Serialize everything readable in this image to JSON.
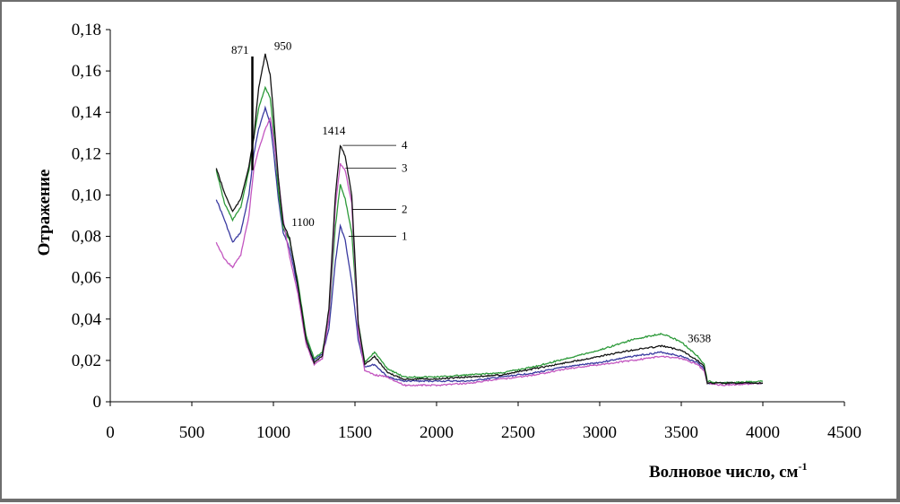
{
  "chart_data": {
    "type": "line",
    "title": "",
    "xlabel": "Волновое число, см",
    "xlabel_superscript": "-1",
    "ylabel": "Отражение",
    "xlim": [
      0,
      4500
    ],
    "ylim": [
      0,
      0.18
    ],
    "x_ticks": [
      0,
      500,
      1000,
      1500,
      2000,
      2500,
      3000,
      3500,
      4000,
      4500
    ],
    "x_tick_labels": [
      "0",
      "500",
      "1000",
      "1500",
      "2000",
      "2500",
      "3000",
      "3500",
      "4000",
      "4500"
    ],
    "y_ticks": [
      0,
      0.02,
      0.04,
      0.06,
      0.08,
      0.1,
      0.12,
      0.14,
      0.16,
      0.18
    ],
    "y_tick_labels": [
      "0",
      "0,02",
      "0,04",
      "0,06",
      "0,08",
      "0,10",
      "0,12",
      "0,14",
      "0,16",
      "0,18"
    ],
    "grid": false,
    "series": [
      {
        "name": "1",
        "color": "#3a3aa0",
        "points": [
          [
            650,
            0.098
          ],
          [
            700,
            0.088
          ],
          [
            750,
            0.077
          ],
          [
            800,
            0.082
          ],
          [
            850,
            0.1
          ],
          [
            880,
            0.12
          ],
          [
            910,
            0.132
          ],
          [
            950,
            0.142
          ],
          [
            980,
            0.135
          ],
          [
            1000,
            0.122
          ],
          [
            1030,
            0.098
          ],
          [
            1060,
            0.082
          ],
          [
            1100,
            0.074
          ],
          [
            1150,
            0.055
          ],
          [
            1200,
            0.03
          ],
          [
            1250,
            0.02
          ],
          [
            1300,
            0.023
          ],
          [
            1340,
            0.035
          ],
          [
            1380,
            0.068
          ],
          [
            1410,
            0.085
          ],
          [
            1440,
            0.078
          ],
          [
            1480,
            0.058
          ],
          [
            1520,
            0.03
          ],
          [
            1560,
            0.017
          ],
          [
            1620,
            0.018
          ],
          [
            1700,
            0.012
          ],
          [
            1800,
            0.01
          ],
          [
            1900,
            0.01
          ],
          [
            2000,
            0.01
          ],
          [
            2200,
            0.01
          ],
          [
            2400,
            0.012
          ],
          [
            2600,
            0.014
          ],
          [
            2800,
            0.017
          ],
          [
            3000,
            0.019
          ],
          [
            3200,
            0.022
          ],
          [
            3380,
            0.024
          ],
          [
            3500,
            0.022
          ],
          [
            3600,
            0.019
          ],
          [
            3640,
            0.016
          ],
          [
            3660,
            0.009
          ],
          [
            3750,
            0.009
          ],
          [
            4000,
            0.009
          ]
        ]
      },
      {
        "name": "2",
        "color": "#2d9a3a",
        "points": [
          [
            650,
            0.112
          ],
          [
            700,
            0.096
          ],
          [
            750,
            0.088
          ],
          [
            800,
            0.094
          ],
          [
            850,
            0.112
          ],
          [
            880,
            0.128
          ],
          [
            910,
            0.142
          ],
          [
            950,
            0.152
          ],
          [
            980,
            0.147
          ],
          [
            1000,
            0.132
          ],
          [
            1030,
            0.102
          ],
          [
            1060,
            0.084
          ],
          [
            1100,
            0.078
          ],
          [
            1150,
            0.058
          ],
          [
            1200,
            0.032
          ],
          [
            1250,
            0.021
          ],
          [
            1300,
            0.024
          ],
          [
            1340,
            0.04
          ],
          [
            1380,
            0.085
          ],
          [
            1410,
            0.105
          ],
          [
            1440,
            0.098
          ],
          [
            1480,
            0.082
          ],
          [
            1520,
            0.038
          ],
          [
            1560,
            0.019
          ],
          [
            1620,
            0.024
          ],
          [
            1700,
            0.016
          ],
          [
            1800,
            0.012
          ],
          [
            1900,
            0.012
          ],
          [
            2000,
            0.012
          ],
          [
            2200,
            0.013
          ],
          [
            2400,
            0.014
          ],
          [
            2600,
            0.017
          ],
          [
            2800,
            0.021
          ],
          [
            3000,
            0.025
          ],
          [
            3200,
            0.03
          ],
          [
            3380,
            0.033
          ],
          [
            3500,
            0.029
          ],
          [
            3600,
            0.022
          ],
          [
            3640,
            0.018
          ],
          [
            3660,
            0.01
          ],
          [
            3750,
            0.009
          ],
          [
            4000,
            0.01
          ]
        ]
      },
      {
        "name": "3",
        "color": "#c356c0",
        "points": [
          [
            650,
            0.077
          ],
          [
            700,
            0.069
          ],
          [
            750,
            0.065
          ],
          [
            800,
            0.071
          ],
          [
            850,
            0.09
          ],
          [
            880,
            0.113
          ],
          [
            910,
            0.122
          ],
          [
            950,
            0.132
          ],
          [
            980,
            0.137
          ],
          [
            1000,
            0.128
          ],
          [
            1030,
            0.108
          ],
          [
            1060,
            0.088
          ],
          [
            1100,
            0.07
          ],
          [
            1150,
            0.052
          ],
          [
            1200,
            0.028
          ],
          [
            1250,
            0.018
          ],
          [
            1300,
            0.021
          ],
          [
            1340,
            0.04
          ],
          [
            1380,
            0.095
          ],
          [
            1410,
            0.115
          ],
          [
            1440,
            0.112
          ],
          [
            1480,
            0.096
          ],
          [
            1520,
            0.034
          ],
          [
            1560,
            0.015
          ],
          [
            1620,
            0.013
          ],
          [
            1700,
            0.012
          ],
          [
            1800,
            0.008
          ],
          [
            1900,
            0.008
          ],
          [
            2000,
            0.008
          ],
          [
            2200,
            0.009
          ],
          [
            2400,
            0.011
          ],
          [
            2600,
            0.013
          ],
          [
            2800,
            0.016
          ],
          [
            3000,
            0.018
          ],
          [
            3200,
            0.02
          ],
          [
            3380,
            0.022
          ],
          [
            3500,
            0.021
          ],
          [
            3600,
            0.018
          ],
          [
            3640,
            0.015
          ],
          [
            3660,
            0.009
          ],
          [
            3750,
            0.008
          ],
          [
            4000,
            0.009
          ]
        ]
      },
      {
        "name": "4",
        "color": "#141414",
        "points": [
          [
            650,
            0.113
          ],
          [
            700,
            0.101
          ],
          [
            750,
            0.092
          ],
          [
            800,
            0.098
          ],
          [
            850,
            0.114
          ],
          [
            880,
            0.128
          ],
          [
            910,
            0.152
          ],
          [
            950,
            0.168
          ],
          [
            980,
            0.158
          ],
          [
            1000,
            0.14
          ],
          [
            1030,
            0.108
          ],
          [
            1060,
            0.086
          ],
          [
            1100,
            0.079
          ],
          [
            1150,
            0.056
          ],
          [
            1200,
            0.03
          ],
          [
            1250,
            0.019
          ],
          [
            1300,
            0.022
          ],
          [
            1340,
            0.045
          ],
          [
            1380,
            0.1
          ],
          [
            1410,
            0.124
          ],
          [
            1440,
            0.119
          ],
          [
            1480,
            0.1
          ],
          [
            1520,
            0.038
          ],
          [
            1560,
            0.018
          ],
          [
            1620,
            0.022
          ],
          [
            1700,
            0.014
          ],
          [
            1800,
            0.011
          ],
          [
            1900,
            0.011
          ],
          [
            2000,
            0.011
          ],
          [
            2200,
            0.012
          ],
          [
            2400,
            0.013
          ],
          [
            2600,
            0.016
          ],
          [
            2800,
            0.019
          ],
          [
            3000,
            0.022
          ],
          [
            3200,
            0.025
          ],
          [
            3380,
            0.027
          ],
          [
            3500,
            0.025
          ],
          [
            3600,
            0.02
          ],
          [
            3640,
            0.017
          ],
          [
            3660,
            0.009
          ],
          [
            3750,
            0.009
          ],
          [
            4000,
            0.009
          ]
        ]
      }
    ],
    "annotations": [
      {
        "text": "871",
        "x": 871,
        "y": 0.167,
        "marker": "vertical-bar"
      },
      {
        "text": "950",
        "x": 950,
        "y": 0.168
      },
      {
        "text": "1100",
        "x": 1100,
        "y": 0.079
      },
      {
        "text": "1414",
        "x": 1414,
        "y": 0.124
      },
      {
        "text": "3638",
        "x": 3638,
        "y": 0.022
      }
    ],
    "series_labels": [
      {
        "text": "4",
        "series": "4",
        "x": 1414,
        "y": 0.124
      },
      {
        "text": "3",
        "series": "3",
        "x": 1430,
        "y": 0.113
      },
      {
        "text": "2",
        "series": "2",
        "x": 1470,
        "y": 0.093
      },
      {
        "text": "1",
        "series": "1",
        "x": 1450,
        "y": 0.08
      }
    ]
  }
}
